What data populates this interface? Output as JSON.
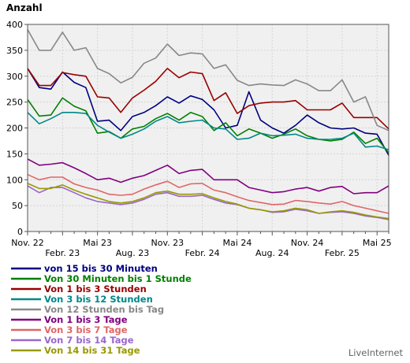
{
  "chart_data": {
    "type": "line",
    "title": "Anzahl",
    "credit": "LiveInternet",
    "ylim": [
      0,
      400
    ],
    "y_ticks": [
      0,
      50,
      100,
      150,
      200,
      250,
      300,
      350,
      400
    ],
    "x_tick_labels_row1": [
      "Nov. 22",
      "Mai 23",
      "Nov. 23",
      "Mai 24",
      "Nov. 24",
      "Mai 25"
    ],
    "x_tick_labels_row2": [
      "Febr. 23",
      "Aug. 23",
      "Febr. 24",
      "Aug. 24",
      "Febr. 25"
    ],
    "x_tick_count": 32,
    "grid": true,
    "series": [
      {
        "name": "von 15 bis 30 Minuten",
        "color": "#000080",
        "values": [
          315,
          278,
          275,
          308,
          288,
          278,
          213,
          215,
          195,
          222,
          230,
          243,
          260,
          248,
          262,
          255,
          235,
          200,
          205,
          270,
          215,
          200,
          190,
          205,
          225,
          210,
          200,
          198,
          200,
          190,
          188,
          147
        ]
      },
      {
        "name": "Von 30 Minuten bis 1 Stunde",
        "color": "#008000",
        "values": [
          255,
          223,
          225,
          258,
          242,
          233,
          190,
          193,
          180,
          198,
          203,
          218,
          228,
          215,
          230,
          222,
          195,
          210,
          185,
          198,
          190,
          180,
          188,
          198,
          185,
          178,
          175,
          178,
          192,
          170,
          180,
          152
        ]
      },
      {
        "name": "Von 1 bis 3 Stunden",
        "color": "#990000",
        "values": [
          315,
          282,
          282,
          307,
          303,
          300,
          260,
          258,
          230,
          258,
          273,
          290,
          315,
          297,
          308,
          305,
          253,
          268,
          228,
          243,
          248,
          250,
          250,
          253,
          235,
          235,
          235,
          248,
          220,
          220,
          220,
          198
        ]
      },
      {
        "name": "Von 3 bis 12 Stunden",
        "color": "#008888",
        "values": [
          230,
          208,
          218,
          230,
          230,
          228,
          205,
          192,
          180,
          188,
          198,
          213,
          222,
          210,
          213,
          215,
          200,
          198,
          178,
          180,
          190,
          185,
          186,
          188,
          180,
          178,
          178,
          180,
          190,
          163,
          165,
          158
        ]
      },
      {
        "name": "Von 12 Stunden bis Tag",
        "color": "#888888",
        "values": [
          390,
          350,
          350,
          385,
          350,
          355,
          315,
          305,
          287,
          298,
          325,
          335,
          362,
          340,
          345,
          343,
          315,
          322,
          292,
          282,
          285,
          283,
          282,
          293,
          285,
          272,
          272,
          293,
          250,
          260,
          205,
          195
        ]
      },
      {
        "name": "Von 1 bis 3 Tage",
        "color": "#800080",
        "values": [
          140,
          128,
          130,
          133,
          123,
          112,
          100,
          103,
          95,
          103,
          108,
          118,
          128,
          112,
          118,
          120,
          100,
          100,
          100,
          85,
          80,
          75,
          77,
          82,
          85,
          78,
          85,
          87,
          73,
          75,
          75,
          88
        ]
      },
      {
        "name": "Von 3 bis 7 Tage",
        "color": "#e06666",
        "values": [
          110,
          100,
          105,
          105,
          92,
          85,
          80,
          72,
          70,
          72,
          82,
          90,
          97,
          85,
          92,
          93,
          80,
          75,
          67,
          60,
          56,
          52,
          53,
          60,
          58,
          55,
          53,
          58,
          50,
          45,
          40,
          35
        ]
      },
      {
        "name": "Von 7 bis 14 Tage",
        "color": "#9966cc",
        "values": [
          88,
          75,
          85,
          85,
          75,
          65,
          58,
          55,
          52,
          55,
          62,
          72,
          75,
          68,
          68,
          70,
          62,
          55,
          52,
          45,
          42,
          37,
          38,
          43,
          40,
          35,
          37,
          38,
          35,
          30,
          27,
          23
        ]
      },
      {
        "name": "Von 14 bis 31 Tage",
        "color": "#999900",
        "values": [
          93,
          83,
          83,
          90,
          80,
          72,
          65,
          58,
          55,
          58,
          65,
          75,
          78,
          72,
          72,
          73,
          65,
          58,
          53,
          45,
          42,
          38,
          40,
          45,
          42,
          35,
          38,
          40,
          37,
          32,
          28,
          25
        ]
      }
    ]
  }
}
